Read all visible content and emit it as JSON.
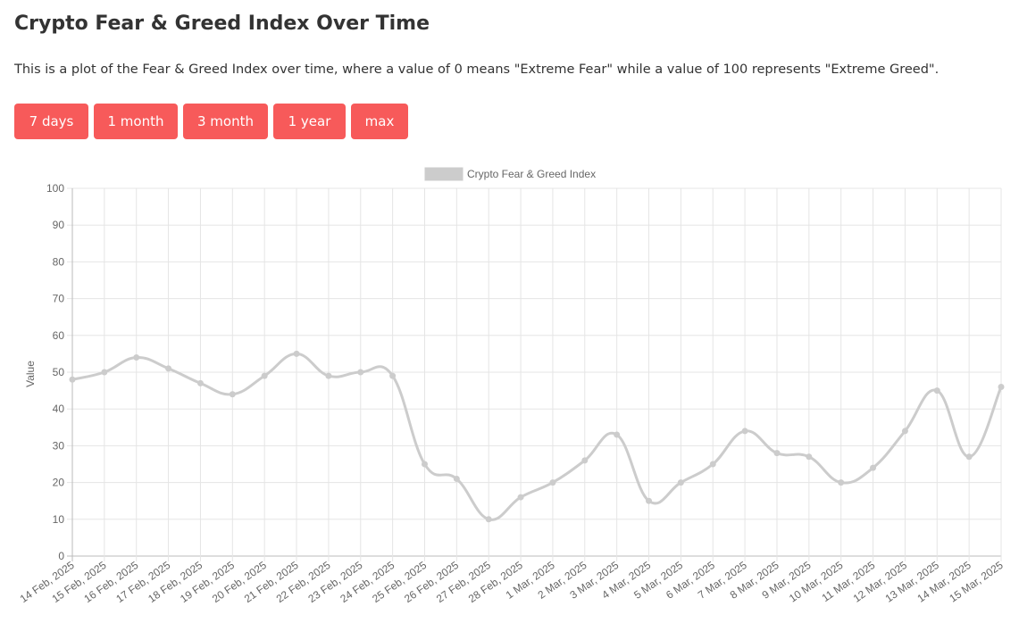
{
  "header": {
    "title": "Crypto Fear & Greed Index Over Time",
    "description": "This is a plot of the Fear & Greed Index over time, where a value of 0 means \"Extreme Fear\" while a value of 100 represents \"Extreme Greed\"."
  },
  "buttons": [
    {
      "label": "7 days"
    },
    {
      "label": "1 month"
    },
    {
      "label": "3 month"
    },
    {
      "label": "1 year"
    },
    {
      "label": "max"
    }
  ],
  "chart_data": {
    "type": "line",
    "title": "",
    "xlabel": "",
    "ylabel": "Value",
    "ylim": [
      0,
      100
    ],
    "yticks": [
      0,
      10,
      20,
      30,
      40,
      50,
      60,
      70,
      80,
      90,
      100
    ],
    "grid": true,
    "legend_position": "top-center",
    "categories": [
      "14 Feb, 2025",
      "15 Feb, 2025",
      "16 Feb, 2025",
      "17 Feb, 2025",
      "18 Feb, 2025",
      "19 Feb, 2025",
      "20 Feb, 2025",
      "21 Feb, 2025",
      "22 Feb, 2025",
      "23 Feb, 2025",
      "24 Feb, 2025",
      "25 Feb, 2025",
      "26 Feb, 2025",
      "27 Feb, 2025",
      "28 Feb, 2025",
      "1 Mar, 2025",
      "2 Mar, 2025",
      "3 Mar, 2025",
      "4 Mar, 2025",
      "5 Mar, 2025",
      "6 Mar, 2025",
      "7 Mar, 2025",
      "8 Mar, 2025",
      "9 Mar, 2025",
      "10 Mar, 2025",
      "11 Mar, 2025",
      "12 Mar, 2025",
      "13 Mar, 2025",
      "14 Mar, 2025",
      "15 Mar, 2025"
    ],
    "series": [
      {
        "name": "Crypto Fear & Greed Index",
        "color": "#cccccc",
        "values": [
          48,
          50,
          54,
          51,
          47,
          44,
          49,
          55,
          49,
          50,
          49,
          25,
          21,
          10,
          16,
          20,
          26,
          33,
          15,
          20,
          25,
          34,
          28,
          27,
          20,
          24,
          34,
          45,
          27,
          46
        ]
      }
    ]
  }
}
